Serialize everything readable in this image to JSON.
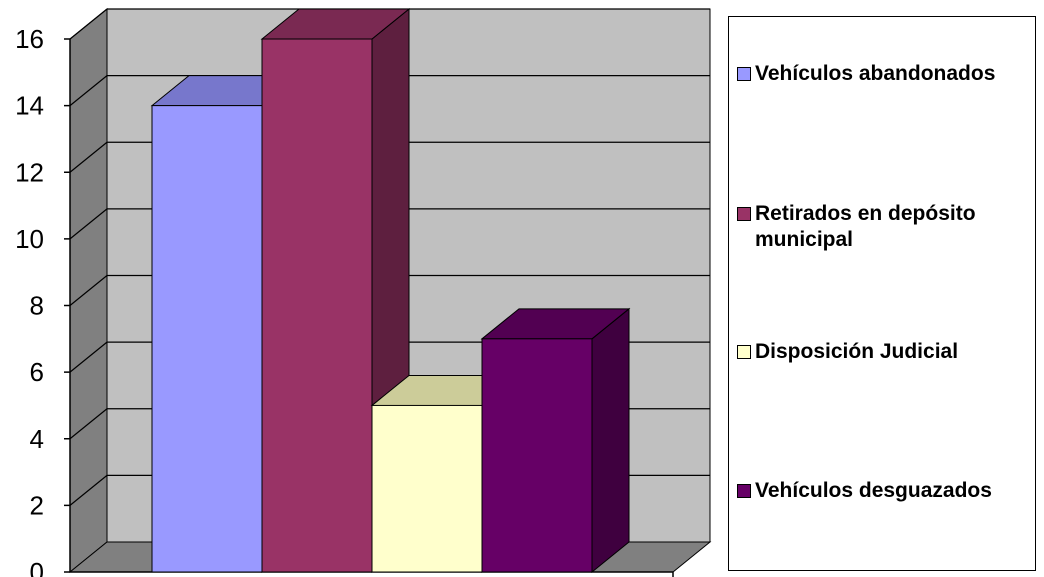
{
  "chart_data": {
    "type": "bar",
    "style": "3d-clustered-column",
    "categories": [
      ""
    ],
    "series": [
      {
        "name": "Vehículos abandonados",
        "values": [
          14
        ],
        "color": "#9999FF",
        "top_color": "#7777CC",
        "side_color": "#7777CC"
      },
      {
        "name": "Retirados  en depósito municipal",
        "values": [
          16
        ],
        "color": "#993366",
        "top_color": "#7A2952",
        "side_color": "#5E1F3F"
      },
      {
        "name": "Disposición Judicial",
        "values": [
          5
        ],
        "color": "#FFFFCC",
        "top_color": "#CCCC99",
        "side_color": "#CCCCA3"
      },
      {
        "name": "Vehículos desguazados",
        "values": [
          7
        ],
        "color": "#660066",
        "top_color": "#520052",
        "side_color": "#3F003F"
      }
    ],
    "ylim": [
      0,
      16
    ],
    "yticks": [
      "0",
      "2",
      "4",
      "6",
      "8",
      "10",
      "12",
      "14",
      "16"
    ],
    "grid": true,
    "legend_position": "right",
    "title": "",
    "xlabel": "",
    "ylabel": ""
  }
}
